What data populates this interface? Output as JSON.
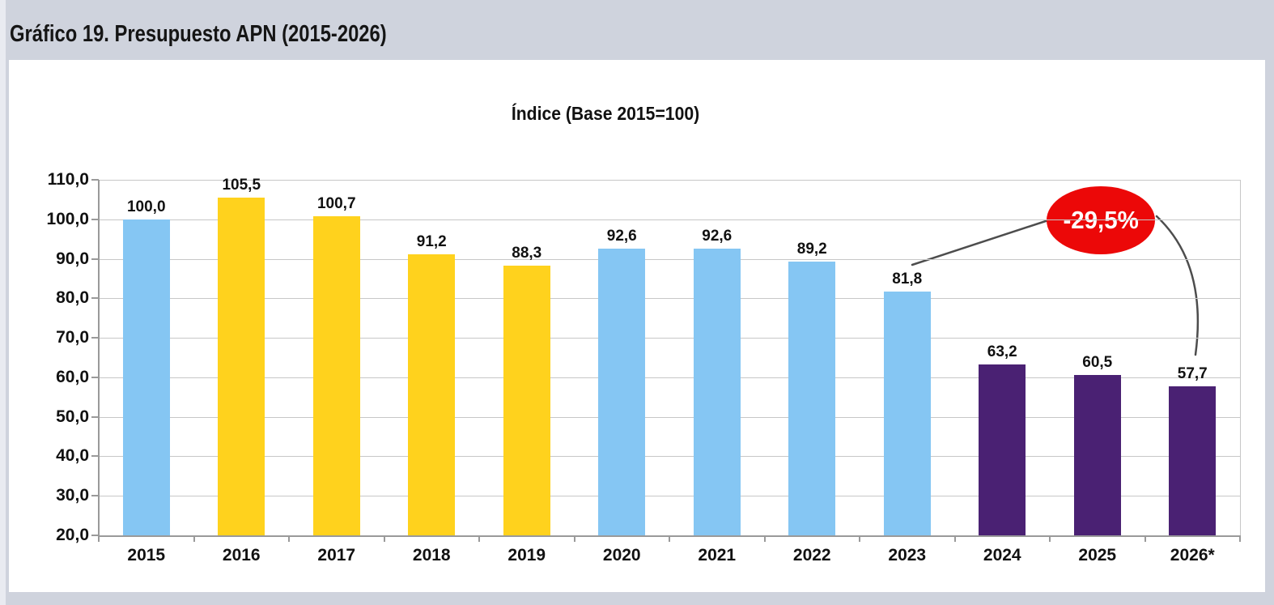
{
  "header": {
    "title": "Gráfico 19. Presupuesto APN (2015-2026)"
  },
  "chart_data": {
    "type": "bar",
    "title": "Índice (Base 2015=100)",
    "categories": [
      "2015",
      "2016",
      "2017",
      "2018",
      "2019",
      "2020",
      "2021",
      "2022",
      "2023",
      "2024",
      "2025",
      "2026*"
    ],
    "values": [
      100.0,
      105.5,
      100.7,
      91.2,
      88.3,
      92.6,
      92.6,
      89.2,
      81.8,
      63.2,
      60.5,
      57.7
    ],
    "value_labels": [
      "100,0",
      "105,5",
      "100,7",
      "91,2",
      "88,3",
      "92,6",
      "92,6",
      "89,2",
      "81,8",
      "63,2",
      "60,5",
      "57,7"
    ],
    "bar_colors": [
      "#85C6F3",
      "#FFD21D",
      "#FFD21D",
      "#FFD21D",
      "#FFD21D",
      "#85C6F3",
      "#85C6F3",
      "#85C6F3",
      "#85C6F3",
      "#4A2173",
      "#4A2173",
      "#4A2173"
    ],
    "ylim": [
      20,
      110
    ],
    "yticks": [
      {
        "value": 110,
        "label": "110,0"
      },
      {
        "value": 100,
        "label": "100,0"
      },
      {
        "value": 90,
        "label": "90,0"
      },
      {
        "value": 80,
        "label": "80,0"
      },
      {
        "value": 70,
        "label": "70,0"
      },
      {
        "value": 60,
        "label": "60,0"
      },
      {
        "value": 50,
        "label": "50,0"
      },
      {
        "value": 40,
        "label": "40,0"
      },
      {
        "value": 30,
        "label": "30,0"
      },
      {
        "value": 20,
        "label": "20,0"
      }
    ],
    "grid": true,
    "legend": null,
    "annotation": {
      "text": "-29,5%",
      "fill": "#EC0808",
      "text_color": "#FFFFFF",
      "from_category": "2023",
      "to_category": "2026*"
    }
  },
  "colors": {
    "page_background": "#CFD3DD",
    "panel_background": "#FFFFFF",
    "gridline": "#C7C7C7",
    "axis": "#9A9A9A",
    "connector": "#4D4D4D",
    "blue_bar": "#85C6F3",
    "yellow_bar": "#FFD21D",
    "purple_bar": "#4A2173",
    "annotation_red": "#EC0808"
  }
}
